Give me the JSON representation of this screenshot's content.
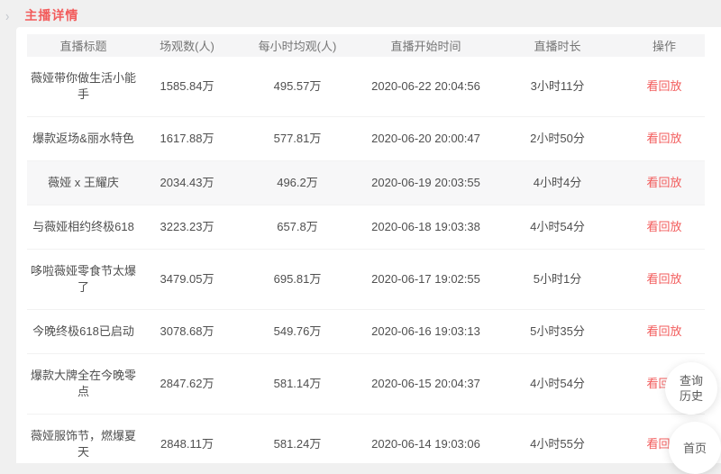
{
  "breadcrumb": {
    "chevron": "›",
    "title": "主播详情"
  },
  "table": {
    "columns": [
      "直播标题",
      "场观数(人)",
      "每小时均观(人)",
      "直播开始时间",
      "直播时长",
      "操作"
    ],
    "action_label": "看回放",
    "rows": [
      {
        "title": "薇娅带你做生活小能手",
        "viewers": "1585.84万",
        "hourly": "495.57万",
        "start": "2020-06-22 20:04:56",
        "duration": "3小时11分",
        "highlighted": false
      },
      {
        "title": "爆款返场&丽水特色",
        "viewers": "1617.88万",
        "hourly": "577.81万",
        "start": "2020-06-20 20:00:47",
        "duration": "2小时50分",
        "highlighted": false
      },
      {
        "title": "薇娅 x 王耀庆",
        "viewers": "2034.43万",
        "hourly": "496.2万",
        "start": "2020-06-19 20:03:55",
        "duration": "4小时4分",
        "highlighted": true
      },
      {
        "title": "与薇娅相约终极618",
        "viewers": "3223.23万",
        "hourly": "657.8万",
        "start": "2020-06-18 19:03:38",
        "duration": "4小时54分",
        "highlighted": false
      },
      {
        "title": "哆啦薇娅零食节太爆了",
        "viewers": "3479.05万",
        "hourly": "695.81万",
        "start": "2020-06-17 19:02:55",
        "duration": "5小时1分",
        "highlighted": false
      },
      {
        "title": "今晚终极618已启动",
        "viewers": "3078.68万",
        "hourly": "549.76万",
        "start": "2020-06-16 19:03:13",
        "duration": "5小时35分",
        "highlighted": false
      },
      {
        "title": "爆款大牌全在今晚零点",
        "viewers": "2847.62万",
        "hourly": "581.14万",
        "start": "2020-06-15 20:04:37",
        "duration": "4小时54分",
        "highlighted": false
      },
      {
        "title": "薇娅服饰节，燃爆夏天",
        "viewers": "2848.11万",
        "hourly": "581.24万",
        "start": "2020-06-14 19:03:06",
        "duration": "4小时55分",
        "highlighted": false
      }
    ]
  },
  "floating_buttons": {
    "history": "查询历史",
    "home": "首页"
  },
  "colors": {
    "accent_red": "#f25b5b",
    "page_bg": "#f0f0f0",
    "card_bg": "#ffffff",
    "header_bg": "#f5f5f6",
    "header_text": "#757575",
    "text": "#4f4f4f",
    "row_border": "#f2f2f2",
    "highlight_bg": "#f7f7f8"
  }
}
